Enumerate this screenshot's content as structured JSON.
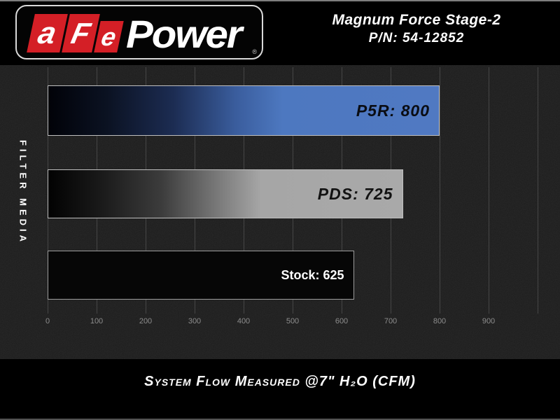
{
  "header": {
    "logo": {
      "letters": [
        "a",
        "F",
        "e"
      ],
      "brand": "Power",
      "registered": "®",
      "red": "#d41f26"
    },
    "title_line1": "Magnum Force Stage-2",
    "title_line2": "P/N: 54-12852"
  },
  "chart_data": {
    "type": "bar",
    "orientation": "horizontal",
    "categories": [
      "P5R",
      "PDS",
      "Stock"
    ],
    "values": [
      800,
      725,
      625
    ],
    "bar_labels": [
      "P5R: 800",
      "PDS: 725",
      "Stock: 625"
    ],
    "bar_styles": [
      {
        "fill": "gradient-black-to-blue",
        "end_color": "#4d78c0",
        "label_color": "#0a0d14"
      },
      {
        "fill": "gradient-black-to-gray",
        "end_color": "#a9a9a9",
        "label_color": "#121212"
      },
      {
        "fill": "solid-black",
        "end_color": "#060606",
        "label_color": "#ffffff"
      }
    ],
    "ylabel": "FILTER MEDIA",
    "xlabel": "System Flow Measured @7\" H₂O (CFM)",
    "x_ticks": [
      0,
      100,
      200,
      300,
      400,
      500,
      600,
      700,
      800,
      900
    ],
    "xlim": [
      0,
      1000
    ],
    "grid": true,
    "legend": false
  },
  "footer": {
    "caption": "System Flow Measured @7\" H₂O (CFM)"
  }
}
